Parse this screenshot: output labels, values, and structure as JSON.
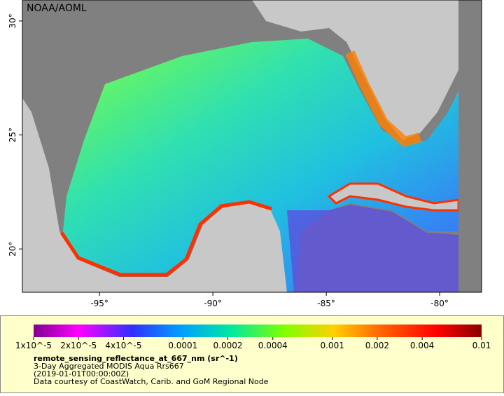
{
  "map": {
    "credit": "NOAA/AOML",
    "lon_range": [
      -98.4,
      -78.15
    ],
    "lat_range": [
      18.1,
      30.92
    ],
    "lon_ticks": [
      {
        "value": -95,
        "label": "-95°"
      },
      {
        "value": -90,
        "label": "-90°"
      },
      {
        "value": -85,
        "label": "-85°"
      },
      {
        "value": -80,
        "label": "-80°"
      }
    ],
    "lat_ticks": [
      {
        "value": 30,
        "label": "30°"
      },
      {
        "value": 25,
        "label": "25°"
      },
      {
        "value": 20,
        "label": "20°"
      }
    ]
  },
  "colorbar": {
    "range": [
      1e-05,
      0.01
    ],
    "log": true,
    "ticks": [
      {
        "value": 1e-05,
        "label": "1x10^-5"
      },
      {
        "value": 2e-05,
        "label": "2x10^-5"
      },
      {
        "value": 4e-05,
        "label": "4x10^-5"
      },
      {
        "value": 0.0001,
        "label": "0.0001"
      },
      {
        "value": 0.0002,
        "label": "0.0002"
      },
      {
        "value": 0.0004,
        "label": "0.0004"
      },
      {
        "value": 0.001,
        "label": "0.001"
      },
      {
        "value": 0.002,
        "label": "0.002"
      },
      {
        "value": 0.004,
        "label": "0.004"
      },
      {
        "value": 0.01,
        "label": "0.01"
      }
    ]
  },
  "legend": {
    "variable": "remote_sensing_reflectance_at_667_nm (sr^-1)",
    "product": "3-Day Aggregated MODIS Aqua Rrs667",
    "time": "(2019-01-01T00:00:00Z)",
    "source": "Data courtesy of CoastWatch, Carib. and GoM Regional Node"
  }
}
